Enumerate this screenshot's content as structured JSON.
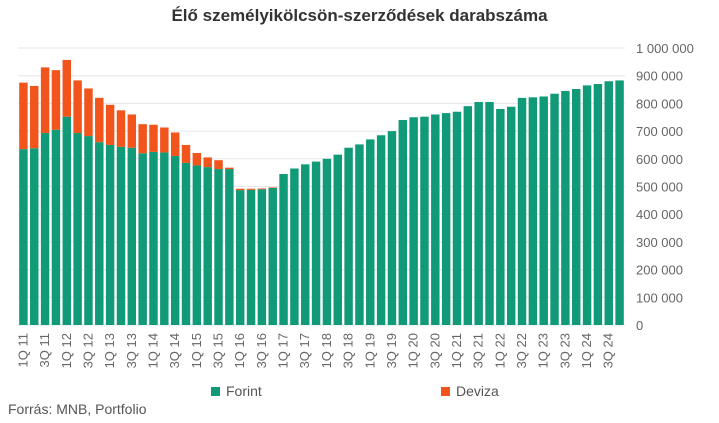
{
  "chart_data": {
    "type": "bar",
    "stacked": true,
    "title": "Élő személyikölcsön-szerződések darabszáma",
    "x": [
      "1Q 11",
      "2Q 11",
      "3Q 11",
      "4Q 11",
      "1Q 12",
      "2Q 12",
      "3Q 12",
      "4Q 12",
      "1Q 13",
      "2Q 13",
      "3Q 13",
      "4Q 13",
      "1Q 14",
      "2Q 14",
      "3Q 14",
      "4Q 14",
      "1Q 15",
      "2Q 15",
      "3Q 15",
      "4Q 15",
      "1Q 16",
      "2Q 16",
      "3Q 16",
      "4Q 16",
      "1Q 17",
      "2Q 17",
      "3Q 17",
      "4Q 17",
      "1Q 18",
      "2Q 18",
      "3Q 18",
      "4Q 18",
      "1Q 19",
      "2Q 19",
      "3Q 19",
      "4Q 19",
      "1Q 20",
      "2Q 20",
      "3Q 20",
      "4Q 20",
      "1Q 21",
      "2Q 21",
      "3Q 21",
      "4Q 21",
      "1Q 22",
      "2Q 22",
      "3Q 22",
      "4Q 22",
      "1Q 23",
      "2Q 23",
      "3Q 23",
      "4Q 23",
      "1Q 24",
      "2Q 24",
      "3Q 24",
      "4Q 24"
    ],
    "tick_labels": [
      "1Q 11",
      "3Q 11",
      "1Q 12",
      "3Q 12",
      "1Q 13",
      "3Q 13",
      "1Q 14",
      "3Q 14",
      "1Q 15",
      "3Q 15",
      "1Q 16",
      "3Q 16",
      "1Q 17",
      "3Q 17",
      "1Q 18",
      "3Q 18",
      "1Q 19",
      "3Q 19",
      "1Q 20",
      "3Q 20",
      "1Q 21",
      "3Q 21",
      "1Q 22",
      "3Q 22",
      "1Q 23",
      "3Q 23",
      "1Q 24",
      "3Q 24"
    ],
    "series": [
      {
        "name": "Forint",
        "color": "#119a78",
        "values": [
          635000,
          638000,
          693000,
          705000,
          752000,
          693000,
          682000,
          660000,
          650000,
          643000,
          640000,
          620000,
          625000,
          623000,
          610000,
          585000,
          576000,
          570000,
          563000,
          563000,
          487000,
          488000,
          490000,
          495000,
          545000,
          565000,
          580000,
          590000,
          600000,
          615000,
          640000,
          652000,
          670000,
          685000,
          700000,
          740000,
          750000,
          752000,
          760000,
          765000,
          770000,
          790000,
          805000,
          805000,
          780000,
          788000,
          820000,
          822000,
          825000,
          835000,
          845000,
          852000,
          865000,
          870000,
          880000,
          883000
        ]
      },
      {
        "name": "Deviza",
        "color": "#f2551c",
        "values": [
          240000,
          225000,
          237000,
          215000,
          205000,
          190000,
          172000,
          160000,
          145000,
          132000,
          120000,
          105000,
          98000,
          90000,
          85000,
          65000,
          45000,
          35000,
          32000,
          5000,
          5000,
          4000,
          3000,
          2000,
          0,
          0,
          0,
          0,
          0,
          0,
          0,
          0,
          0,
          0,
          0,
          0,
          0,
          0,
          0,
          0,
          0,
          0,
          0,
          0,
          0,
          0,
          0,
          0,
          0,
          0,
          0,
          0,
          0,
          0,
          0,
          0
        ]
      }
    ],
    "y_ticks": [
      "1 000 000",
      "900 000",
      "800 000",
      "700 000",
      "600 000",
      "500 000",
      "400 000",
      "300 000",
      "200 000",
      "100 000",
      "0"
    ],
    "ylim": [
      0,
      1000000
    ],
    "y_axis_position": "right",
    "grid": true,
    "legend_position": "bottom"
  },
  "legend": {
    "items": [
      {
        "label": "Forint",
        "color": "#119a78"
      },
      {
        "label": "Deviza",
        "color": "#f2551c"
      }
    ]
  },
  "source": "Forrás: MNB, Portfolio"
}
